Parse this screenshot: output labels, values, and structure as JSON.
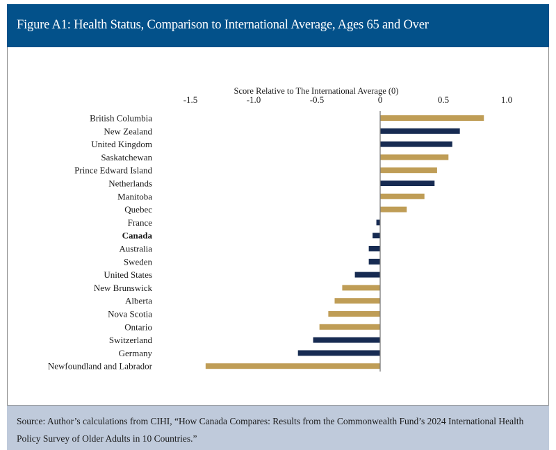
{
  "header": {
    "title": "Figure A1: Health Status, Comparison to International Average, Ages 65 and Over"
  },
  "footer": {
    "source": "Source: Author’s calculations from CIHI, “How Canada Compares: Results from the Commonwealth Fund’s 2024 International Health Policy Survey of Older Adults in 10 Countries.”"
  },
  "colors": {
    "header_bg": "#03518a",
    "footer_bg": "#bfcadb",
    "province": "#bf9d56",
    "country": "#172b52",
    "zero_line": "#7a7a7a"
  },
  "chart_data": {
    "type": "bar",
    "orientation": "horizontal",
    "title": "Figure A1: Health Status, Comparison to International Average, Ages 65 and Over",
    "xlabel": "Score Relative to The International Average (0)",
    "ylabel": "",
    "xlim": [
      -1.5,
      1.0
    ],
    "x_ticks": [
      -1.5,
      -1.0,
      -0.5,
      0,
      0.5,
      1.0
    ],
    "x_tick_labels": [
      "-1.5",
      "-1.0",
      "-0.5",
      "0",
      "0.5",
      "1.0"
    ],
    "x_axis_position": "top",
    "grid": false,
    "legend": "none",
    "bold_category": "Canada",
    "categories": [
      "British Columbia",
      "New Zealand",
      "United Kingdom",
      "Saskatchewan",
      "Prince Edward Island",
      "Netherlands",
      "Manitoba",
      "Quebec",
      "France",
      "Canada",
      "Australia",
      "Sweden",
      "United States",
      "New Brunswick",
      "Alberta",
      "Nova Scotia",
      "Ontario",
      "Switzerland",
      "Germany",
      "Newfoundland and Labrador"
    ],
    "values": [
      0.82,
      0.63,
      0.57,
      0.54,
      0.45,
      0.43,
      0.35,
      0.21,
      -0.03,
      -0.06,
      -0.09,
      -0.09,
      -0.2,
      -0.3,
      -0.36,
      -0.41,
      -0.48,
      -0.53,
      -0.65,
      -1.38
    ],
    "groups": [
      "province",
      "country",
      "country",
      "province",
      "province",
      "country",
      "province",
      "province",
      "country",
      "country",
      "country",
      "country",
      "country",
      "province",
      "province",
      "province",
      "province",
      "country",
      "country",
      "province"
    ]
  }
}
